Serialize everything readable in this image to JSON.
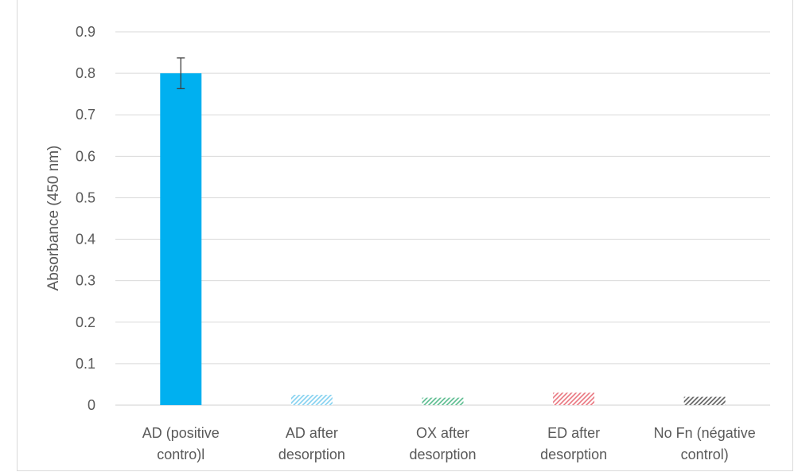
{
  "chart_data": {
    "type": "bar",
    "title": "",
    "xlabel": "",
    "ylabel": "Absorbance (450 nm)",
    "ylim": [
      0,
      0.9
    ],
    "yticks": [
      "0",
      "0.1",
      "0.2",
      "0.3",
      "0.4",
      "0.5",
      "0.6",
      "0.7",
      "0.8",
      "0.9"
    ],
    "grid": true,
    "legend": "none",
    "categories": [
      [
        "AD (positive",
        "contro)l"
      ],
      [
        "AD after",
        "desorption"
      ],
      [
        "OX after",
        "desorption"
      ],
      [
        "ED after",
        "desorption"
      ],
      [
        "No Fn (négative",
        "control)"
      ]
    ],
    "values": [
      0.8,
      0.025,
      0.018,
      0.03,
      0.02
    ],
    "error_bars": [
      0.037,
      null,
      null,
      null,
      null
    ],
    "fills": [
      "solid",
      "hatch",
      "hatch",
      "hatch",
      "hatch"
    ],
    "colors": [
      "#00b0f0",
      "#7fcfef",
      "#54b98a",
      "#e8707a",
      "#595959"
    ]
  }
}
